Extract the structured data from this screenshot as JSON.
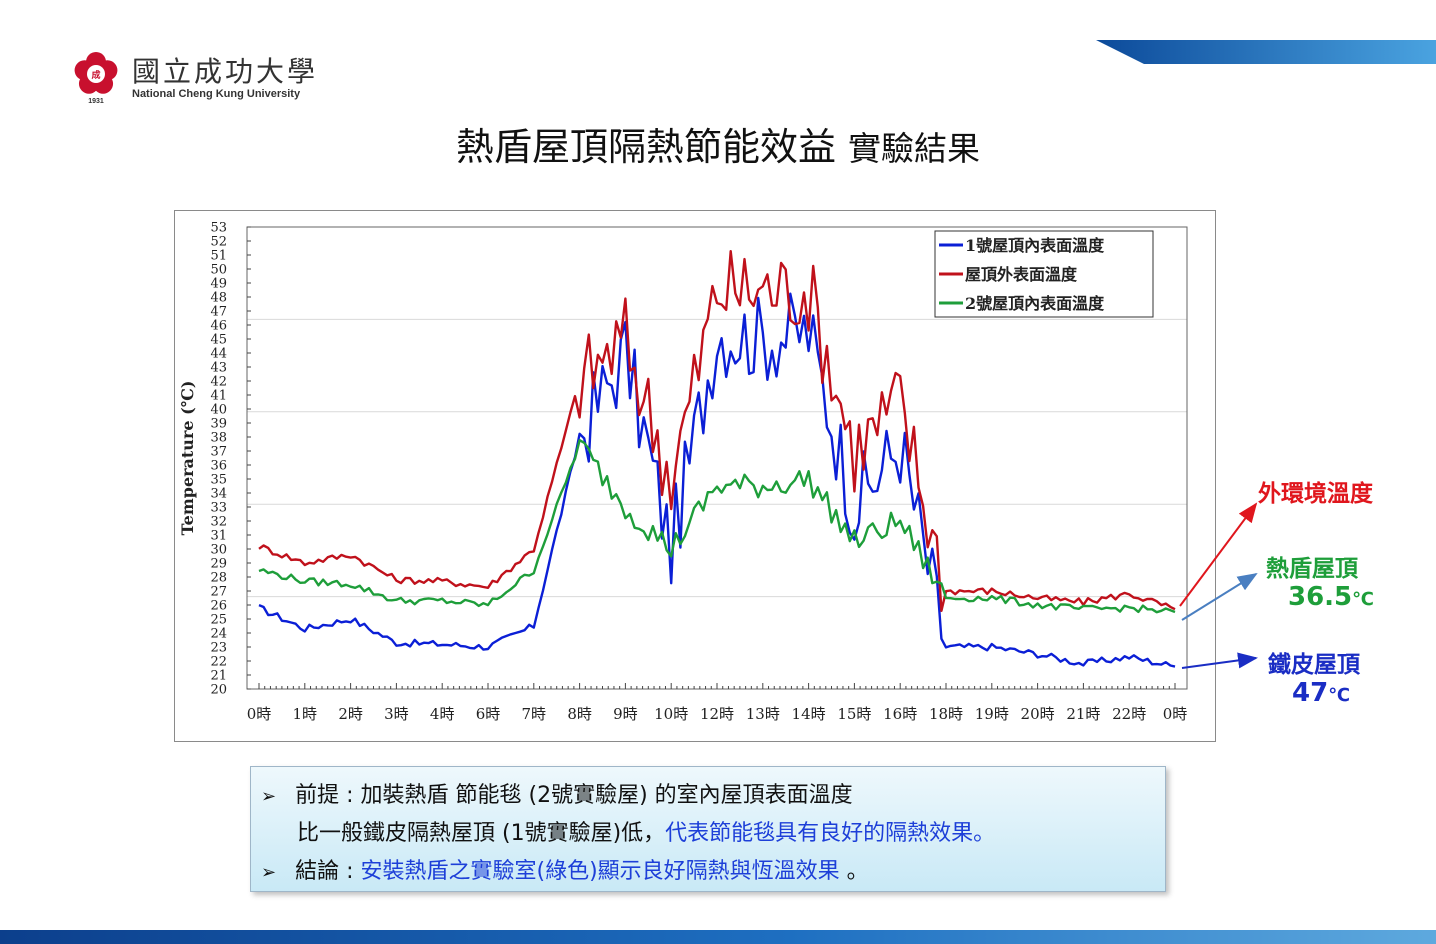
{
  "logo": {
    "seal_year": "1931",
    "name_cn": "國立成功大學",
    "name_en": "National Cheng Kung University",
    "seal_color": "#c8102e"
  },
  "slide": {
    "title_main": "熱盾屋頂隔熱節能效益",
    "title_sub": "實驗結果"
  },
  "chart_data": {
    "type": "line",
    "title": "",
    "xlabel": "",
    "ylabel": "Temperature (℃)",
    "ylim": [
      20,
      53
    ],
    "yticks": [
      20,
      21,
      22,
      23,
      24,
      25,
      26,
      27,
      28,
      29,
      30,
      31,
      32,
      33,
      34,
      35,
      36,
      37,
      38,
      39,
      40,
      41,
      42,
      43,
      44,
      45,
      46,
      47,
      48,
      49,
      50,
      51,
      52,
      53
    ],
    "categories": [
      "0時",
      "1時",
      "2時",
      "3時",
      "4時",
      "6時",
      "7時",
      "8時",
      "9時",
      "10時",
      "12時",
      "13時",
      "14時",
      "15時",
      "16時",
      "18時",
      "19時",
      "20時",
      "21時",
      "22時",
      "0時"
    ],
    "grid": true,
    "legend_position": "top-right",
    "series": [
      {
        "name": "1號屋頂內表面溫度",
        "color": "#0b1fd6",
        "values": [
          25.8,
          24.3,
          25.0,
          23.3,
          23.2,
          23.0,
          24.5,
          38.0,
          44.0,
          30.0,
          45.5,
          45.0,
          45.5,
          33.0,
          37.5,
          23.0,
          23.0,
          22.5,
          21.8,
          22.3,
          21.6
        ]
      },
      {
        "name": "屋頂外表面溫度",
        "color": "#c0111b",
        "values": [
          30.2,
          29.0,
          29.6,
          27.8,
          27.7,
          27.3,
          30.0,
          42.0,
          45.0,
          35.0,
          48.5,
          48.5,
          48.5,
          37.0,
          40.5,
          27.0,
          27.0,
          26.5,
          26.2,
          26.8,
          25.7
        ]
      },
      {
        "name": "2號屋頂內表面溫度",
        "color": "#1e9e3a",
        "values": [
          28.5,
          27.7,
          27.5,
          26.3,
          26.3,
          26.0,
          28.5,
          37.5,
          33.0,
          30.0,
          34.5,
          34.5,
          35.0,
          30.5,
          32.0,
          26.5,
          26.5,
          26.0,
          25.7,
          25.8,
          25.5
        ]
      }
    ]
  },
  "annotations": {
    "outer": {
      "label": "外環境溫度",
      "color": "#e0161d"
    },
    "shield": {
      "label": "熱盾屋頂",
      "value": "36.5",
      "unit": "℃",
      "color": "#1e9e3a"
    },
    "iron": {
      "label": "鐵皮屋頂",
      "value": "47",
      "unit": "℃",
      "color": "#1a2dc4"
    }
  },
  "notes": {
    "bullet": "➢",
    "premise_label": "前提 : ",
    "premise_text": "加裝熱盾 節能毯 (2號實驗屋) 的室內屋頂表面溫度",
    "premise_line2_black": "比一般鐵皮隔熱屋頂 (1號實驗屋)低，",
    "premise_line2_blue": "代表節能毯具有良好的隔熱效果。",
    "conclusion_label": "結論 : ",
    "conclusion_blue": "安裝熱盾之實驗室(綠色)顯示良好隔熱與恆溫效果",
    "conclusion_end": " 。"
  }
}
